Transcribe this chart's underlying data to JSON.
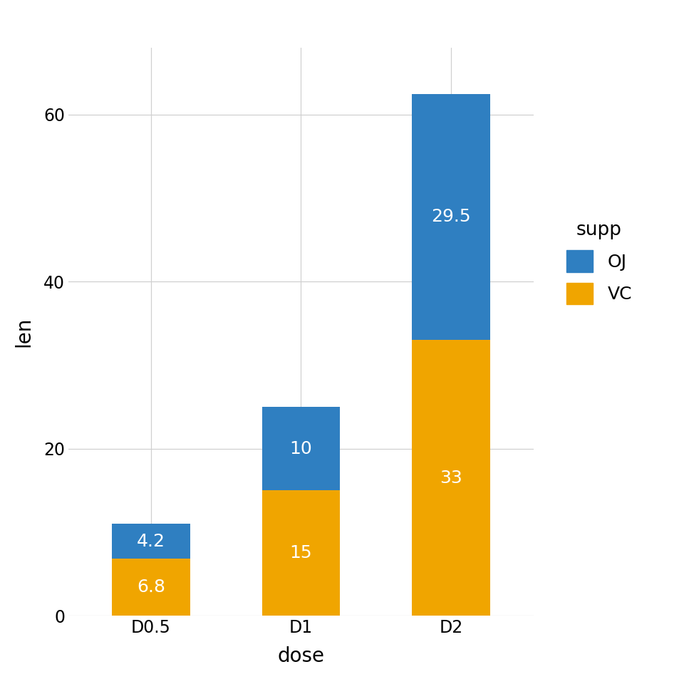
{
  "categories": [
    "D0.5",
    "D1",
    "D2"
  ],
  "vc_values": [
    6.8,
    15.0,
    33.0
  ],
  "oj_values": [
    4.2,
    10.0,
    29.5
  ],
  "vc_color": "#F0A500",
  "oj_color": "#2F7FC1",
  "title": "",
  "xlabel": "dose",
  "ylabel": "len",
  "ylim": [
    0,
    68
  ],
  "yticks": [
    0,
    20,
    40,
    60
  ],
  "legend_title": "supp",
  "legend_labels": [
    "OJ",
    "VC"
  ],
  "background_color": "#FFFFFF",
  "panel_background": "#FFFFFF",
  "grid_color": "#D0D0D0",
  "bar_width": 0.52,
  "label_fontsize": 20,
  "tick_fontsize": 17,
  "legend_fontsize": 18,
  "legend_title_fontsize": 19,
  "value_labels_vc": [
    "6.8",
    "15",
    "33"
  ],
  "value_labels_oj": [
    "4.2",
    "10",
    "29.5"
  ],
  "value_fontsize": 18
}
